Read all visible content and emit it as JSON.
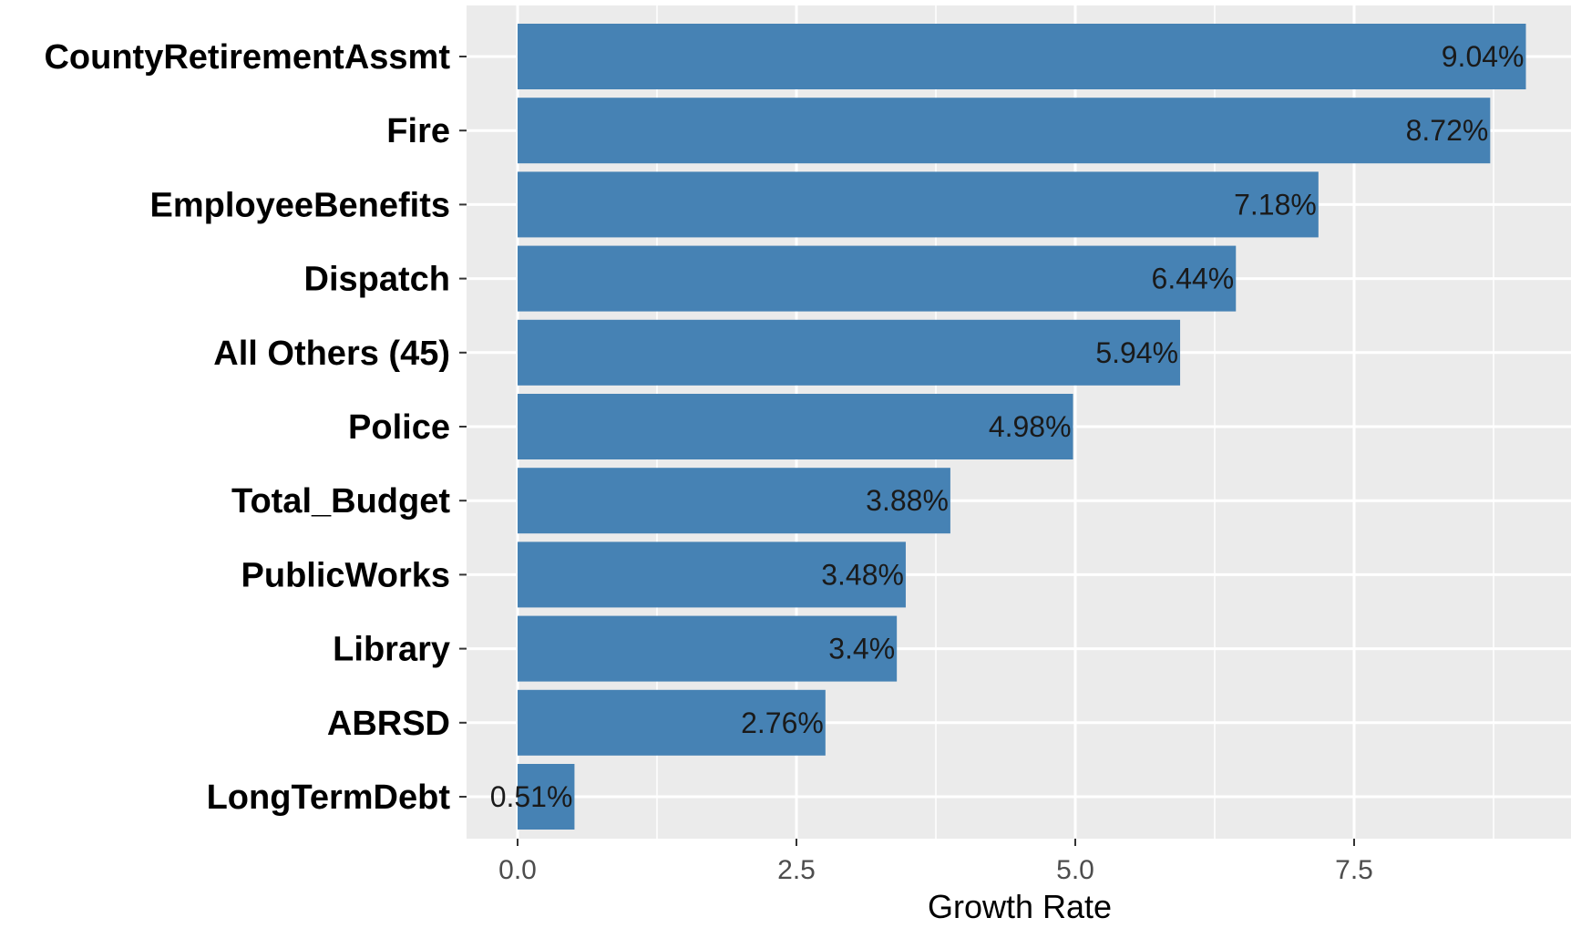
{
  "chart_data": {
    "type": "bar",
    "orientation": "horizontal",
    "title": "",
    "xlabel": "Growth Rate",
    "ylabel": "",
    "xlim": [
      -0.93,
      9.4
    ],
    "x_ticks": [
      "0.0",
      "2.5",
      "5.0",
      "7.5"
    ],
    "x_tick_values": [
      0,
      2.5,
      5,
      7.5
    ],
    "categories": [
      "CountyRetirementAssmt",
      "Fire",
      "EmployeeBenefits",
      "Dispatch",
      "All Others (45)",
      "Police",
      "Total_Budget",
      "PublicWorks",
      "Library",
      "ABRSD",
      "LongTermDebt"
    ],
    "values": [
      9.04,
      8.72,
      7.18,
      6.44,
      5.94,
      4.98,
      3.88,
      3.48,
      3.4,
      2.76,
      0.51
    ],
    "data_labels": [
      "9.04%",
      "8.72%",
      "7.18%",
      "6.44%",
      "5.94%",
      "4.98%",
      "3.88%",
      "3.48%",
      "3.4%",
      "2.76%",
      "0.51%"
    ],
    "grid": true,
    "legend": "none",
    "colors": {
      "bar": "#4682B4",
      "panel_background": "#EBEBEB",
      "grid": "#FFFFFF",
      "tick_text": "#4D4D4D",
      "category_text": "#000000",
      "label_text": "#1A1A1A"
    }
  }
}
